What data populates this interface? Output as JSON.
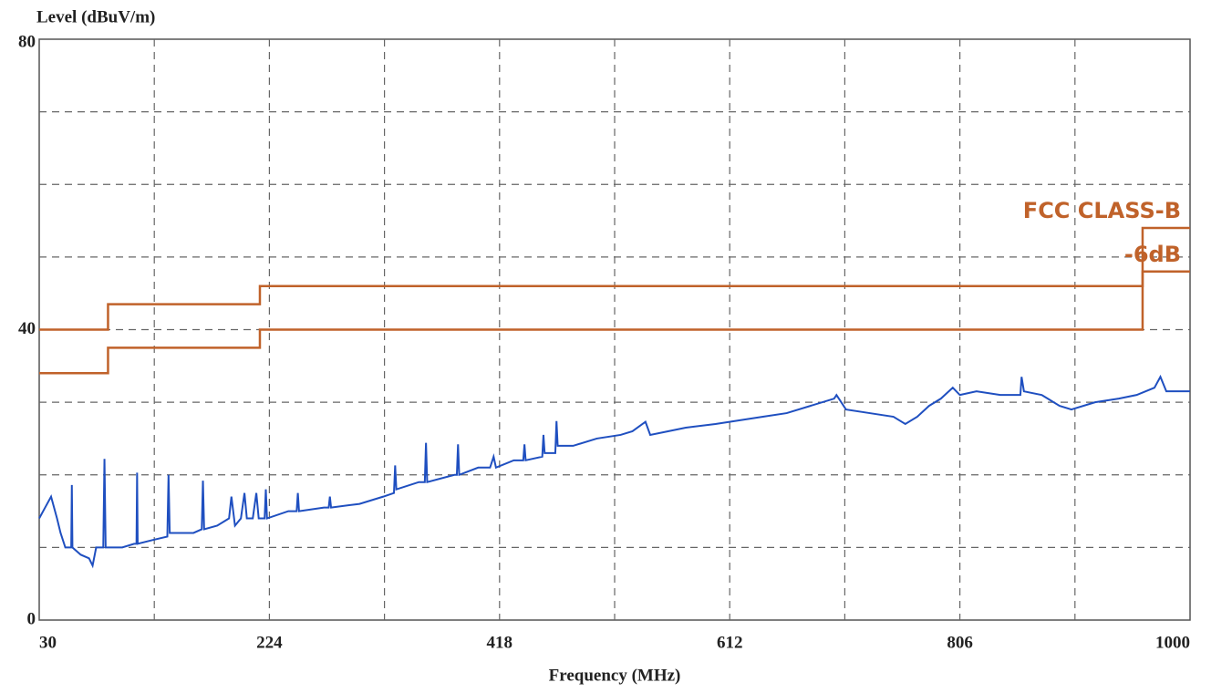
{
  "chart_data": {
    "type": "line",
    "ylabel": "Level (dBuV/m)",
    "xlabel": "Frequency (MHz)",
    "xlim": [
      30,
      1000
    ],
    "ylim": [
      0,
      80
    ],
    "xticks": [
      30,
      224,
      418,
      612,
      806,
      1000
    ],
    "yticks": [
      0,
      40,
      80
    ],
    "xgrid": [
      127,
      224,
      321,
      418,
      515,
      612,
      709,
      806,
      903
    ],
    "ygrid": [
      10,
      20,
      30,
      40,
      50,
      60,
      70
    ],
    "grid": true,
    "series": [
      {
        "name": "FCC CLASS-B",
        "color": "#c0622a",
        "width": 2.5,
        "x": [
          30,
          88,
          88,
          216,
          216,
          960,
          960,
          1000
        ],
        "values": [
          40,
          40,
          43.5,
          43.5,
          46,
          46,
          54,
          54
        ]
      },
      {
        "name": "-6dB",
        "color": "#c0622a",
        "width": 2.5,
        "x": [
          30,
          88,
          88,
          216,
          216,
          960,
          960,
          1000
        ],
        "values": [
          34,
          34,
          37.5,
          37.5,
          40,
          40,
          48,
          48
        ]
      },
      {
        "name": null,
        "color": "#1f4fc0",
        "width": 2,
        "x": [
          30,
          35,
          40,
          45,
          48,
          52,
          55,
          57,
          57.5,
          58,
          65,
          72,
          75,
          78,
          84,
          85,
          86,
          100,
          110,
          112,
          112.5,
          113,
          125,
          138,
          139,
          140,
          160,
          167,
          168,
          169,
          180,
          190,
          192,
          195,
          200,
          203,
          205,
          210,
          213,
          215,
          220,
          221,
          222,
          240,
          247,
          248,
          249,
          270,
          274,
          275,
          276,
          300,
          320,
          329,
          330,
          331,
          350,
          355,
          356,
          357,
          380,
          382,
          383,
          384,
          400,
          410,
          413,
          415,
          430,
          438,
          439,
          440,
          454,
          455,
          456,
          465,
          466,
          467,
          475,
          480,
          500,
          520,
          530,
          541,
          545,
          560,
          575,
          600,
          620,
          640,
          660,
          680,
          700,
          702,
          710,
          730,
          750,
          760,
          770,
          780,
          790,
          800,
          806,
          820,
          840,
          857,
          858,
          860,
          875,
          880,
          890,
          900,
          920,
          940,
          955,
          970,
          975,
          980,
          1000
        ],
        "values": [
          14,
          15.5,
          17,
          14,
          12,
          10,
          10,
          10,
          18.6,
          10,
          9,
          8.5,
          7.5,
          10,
          10,
          22.2,
          10,
          10,
          10.5,
          10.5,
          20.3,
          10.5,
          11,
          11.5,
          20,
          12,
          12,
          12.5,
          19.2,
          12.5,
          13,
          14,
          17,
          13,
          14,
          17.5,
          14,
          14,
          17.5,
          14,
          14,
          18,
          14,
          15,
          15,
          17.5,
          15,
          15.5,
          15.5,
          17,
          15.5,
          16,
          17,
          17.5,
          21.3,
          18,
          19,
          19,
          24.4,
          19,
          20,
          20,
          24.2,
          20,
          21,
          21,
          22.5,
          21,
          22,
          22,
          24.2,
          22,
          22.5,
          25.5,
          23,
          23,
          27.4,
          24,
          24,
          24,
          25,
          25.5,
          26,
          27.3,
          25.5,
          26,
          26.5,
          27,
          27.5,
          28,
          28.5,
          29.5,
          30.5,
          31,
          29,
          28.5,
          28,
          27,
          28,
          29.5,
          30.5,
          32,
          31,
          31.5,
          31,
          31,
          33.5,
          31.5,
          31,
          30.5,
          29.5,
          29,
          30,
          30.5,
          31,
          32,
          33.5,
          31.5,
          31.5
        ]
      }
    ]
  }
}
